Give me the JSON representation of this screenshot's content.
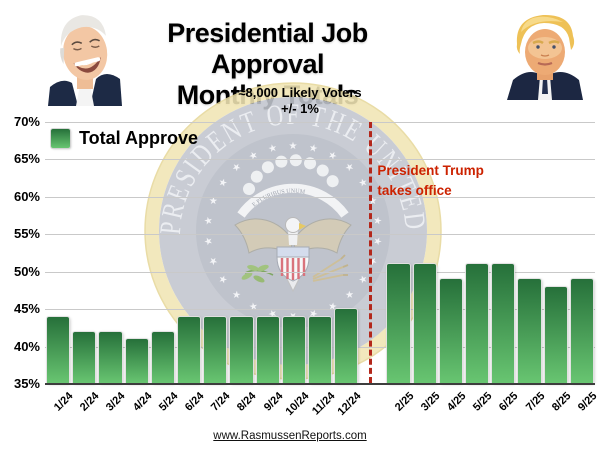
{
  "header": {
    "title_line1": "Presidential Job Approval",
    "title_line2": "Monthly Totals",
    "subtitle_voters": "≈8,000 Likely Voters",
    "subtitle_moe": "+/- 1%"
  },
  "legend": {
    "label": "Total Approve"
  },
  "annotation": {
    "line1": "President Trump",
    "line2": "takes office"
  },
  "footer": {
    "url_label": "www.RasmussenReports.com"
  },
  "images": {
    "left": "biden-portrait",
    "right": "trump-portrait"
  },
  "colors": {
    "bar_top": "#26703a",
    "bar_bottom": "#68c571",
    "separator_red": "#b3271b",
    "annotation_red": "#cc2200",
    "gridline": "#c9c9c9",
    "axis": "#3d3d3d"
  },
  "chart_data": {
    "type": "bar",
    "title": "Presidential Job Approval Monthly Totals",
    "subtitle": "≈8,000 Likely Voters +/- 1%",
    "series_name": "Total Approve",
    "categories": [
      "1/24",
      "2/24",
      "3/24",
      "4/24",
      "5/24",
      "6/24",
      "7/24",
      "8/24",
      "9/24",
      "10/24",
      "11/24",
      "12/24",
      "2/25",
      "3/25",
      "4/25",
      "5/25",
      "6/25",
      "7/25",
      "8/25",
      "9/25"
    ],
    "values": [
      44,
      42,
      42,
      41,
      42,
      44,
      44,
      44,
      44,
      44,
      44,
      45,
      51,
      51,
      49,
      51,
      51,
      49,
      48,
      49
    ],
    "unit": "%",
    "ylim": [
      35,
      70
    ],
    "yticks": [
      35,
      40,
      45,
      50,
      55,
      60,
      65,
      70
    ],
    "ytick_format": "{v}%",
    "xlabel": "",
    "ylabel": "",
    "grid": true,
    "legend_position": "top-left",
    "separator": {
      "label": "President Trump takes office",
      "between": [
        "12/24",
        "2/25"
      ],
      "missing_category": "1/25"
    }
  }
}
